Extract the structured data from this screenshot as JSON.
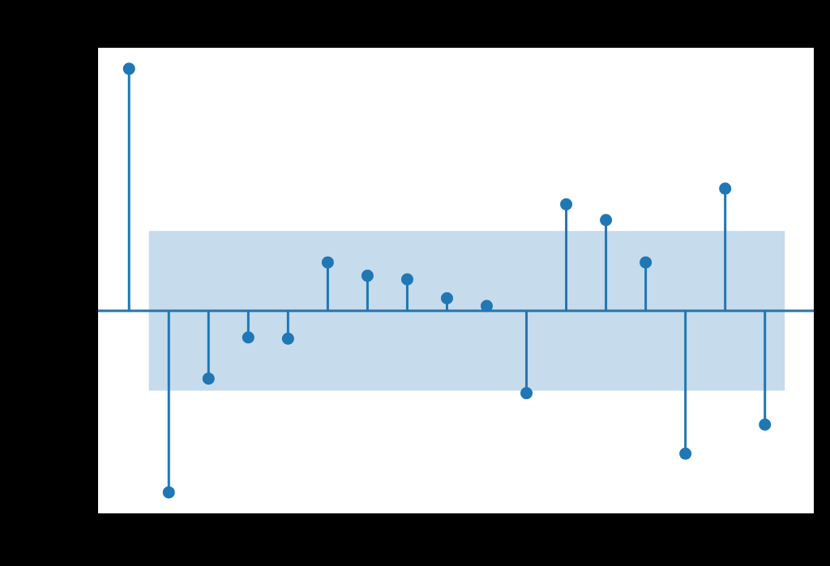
{
  "chart_data": {
    "type": "stem",
    "title": "",
    "xlabel": "",
    "ylabel": "",
    "x": [
      0,
      1,
      2,
      3,
      4,
      5,
      6,
      7,
      8,
      9,
      10,
      11,
      12,
      13,
      14,
      15,
      16
    ],
    "values": [
      1.0,
      -0.75,
      -0.28,
      -0.11,
      -0.115,
      0.2,
      0.145,
      0.13,
      0.052,
      0.02,
      -0.34,
      0.44,
      0.375,
      0.2,
      -0.59,
      0.505,
      -0.47
    ],
    "confidence_band": {
      "upper": 0.33,
      "lower": -0.33,
      "x_start": 0.5,
      "x_end": 16.5
    },
    "xlim": [
      -0.8,
      17.25
    ],
    "ylim": [
      -0.84,
      1.09
    ],
    "grid": false,
    "colors": {
      "stem": "#1f77b4",
      "band": "#c6dbec",
      "axes": "#000000",
      "background": "#ffffff"
    }
  }
}
